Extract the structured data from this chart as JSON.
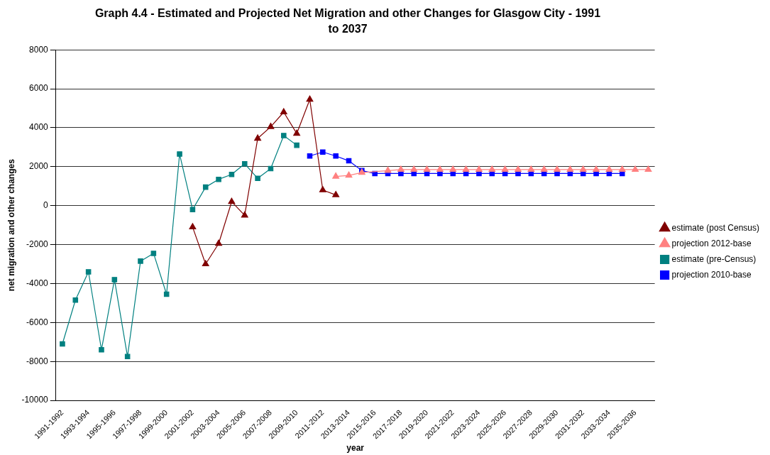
{
  "chart_data": {
    "type": "line",
    "title": "Graph 4.4 - Estimated and Projected Net Migration and other Changes for Glasgow City - 1991 to 2037",
    "xlabel": "year",
    "ylabel": "net migration and other changes",
    "categories": [
      "1991-1992",
      null,
      "1993-1994",
      null,
      "1995-1996",
      null,
      "1997-1998",
      null,
      "1999-2000",
      null,
      "2001-2002",
      null,
      "2003-2004",
      null,
      "2005-2006",
      null,
      "2007-2008",
      null,
      "2009-2010",
      null,
      "2011-2012",
      null,
      "2013-2014",
      null,
      "2015-2016",
      null,
      "2017-2018",
      null,
      "2019-2020",
      null,
      "2021-2022",
      null,
      "2023-2024",
      null,
      "2025-2026",
      null,
      "2027-2028",
      null,
      "2029-2030",
      null,
      "2031-2032",
      null,
      "2033-2034",
      null,
      "2035-2036",
      null
    ],
    "series": [
      {
        "name": "estimate (post Census)",
        "color": "#800000",
        "marker": "triangle",
        "values": [
          null,
          null,
          null,
          null,
          null,
          null,
          null,
          null,
          null,
          null,
          -1100,
          -3000,
          -1950,
          200,
          -500,
          3450,
          4050,
          4800,
          3700,
          5450,
          800,
          550,
          null,
          null,
          null,
          null,
          null,
          null,
          null,
          null,
          null,
          null,
          null,
          null,
          null,
          null,
          null,
          null,
          null,
          null,
          null,
          null,
          null,
          null,
          null,
          null
        ]
      },
      {
        "name": "projection 2012-base",
        "color": "#ff8080",
        "marker": "triangle",
        "values": [
          null,
          null,
          null,
          null,
          null,
          null,
          null,
          null,
          null,
          null,
          null,
          null,
          null,
          null,
          null,
          null,
          null,
          null,
          null,
          null,
          null,
          1500,
          1550,
          1700,
          null,
          1800,
          1850,
          1850,
          1850,
          1850,
          1850,
          1850,
          1850,
          1850,
          1850,
          1850,
          1850,
          1850,
          1850,
          1850,
          1850,
          1850,
          1850,
          1850,
          1850,
          1850
        ]
      },
      {
        "name": "estimate (pre-Census)",
        "color": "#008080",
        "marker": "square",
        "values": [
          -7100,
          -4850,
          -3400,
          -7400,
          -3800,
          -7750,
          -2850,
          -2450,
          -4550,
          2650,
          -200,
          950,
          1350,
          1600,
          2150,
          1400,
          1900,
          3600,
          3100,
          null,
          null,
          null,
          null,
          null,
          null,
          null,
          null,
          null,
          null,
          null,
          null,
          null,
          null,
          null,
          null,
          null,
          null,
          null,
          null,
          null,
          null,
          null,
          null,
          null,
          null,
          null
        ]
      },
      {
        "name": "projection 2010-base",
        "color": "#0000ff",
        "marker": "square",
        "values": [
          null,
          null,
          null,
          null,
          null,
          null,
          null,
          null,
          null,
          null,
          null,
          null,
          null,
          null,
          null,
          null,
          null,
          null,
          null,
          2550,
          2750,
          2550,
          2300,
          1800,
          1650,
          1650,
          1650,
          1650,
          1650,
          1650,
          1650,
          1650,
          1650,
          1650,
          1650,
          1650,
          1650,
          1650,
          1650,
          1650,
          1650,
          1650,
          1650,
          1650,
          null,
          null
        ]
      }
    ],
    "ylim": [
      -10000,
      8000
    ],
    "yticks": [
      -10000,
      -8000,
      -6000,
      -4000,
      -2000,
      0,
      2000,
      4000,
      6000,
      8000
    ],
    "grid": "y",
    "legend": "right",
    "line_style": "solid"
  }
}
